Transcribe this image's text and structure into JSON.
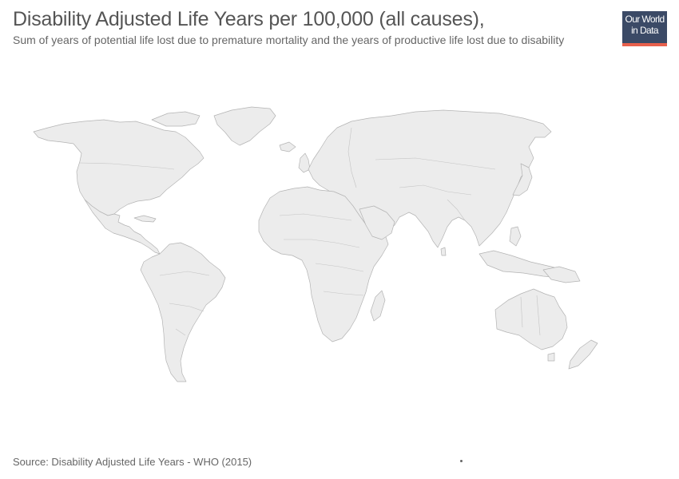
{
  "title": "Disability Adjusted Life Years per 100,000 (all causes),",
  "subtitle": "Sum of years of potential life lost due to premature mortality and the years of productive life lost due to disability",
  "logo": {
    "line1": "Our World",
    "line2": "in Data"
  },
  "source": "Source: Disability Adjusted Life Years - WHO (2015)",
  "colors": {
    "land": "#ececec",
    "border": "#b3b3b3",
    "logo_background": "#3b4a66",
    "logo_accent": "#e8604c",
    "title": "#555555"
  },
  "icons": {
    "timeline_marker": "dot-icon"
  }
}
